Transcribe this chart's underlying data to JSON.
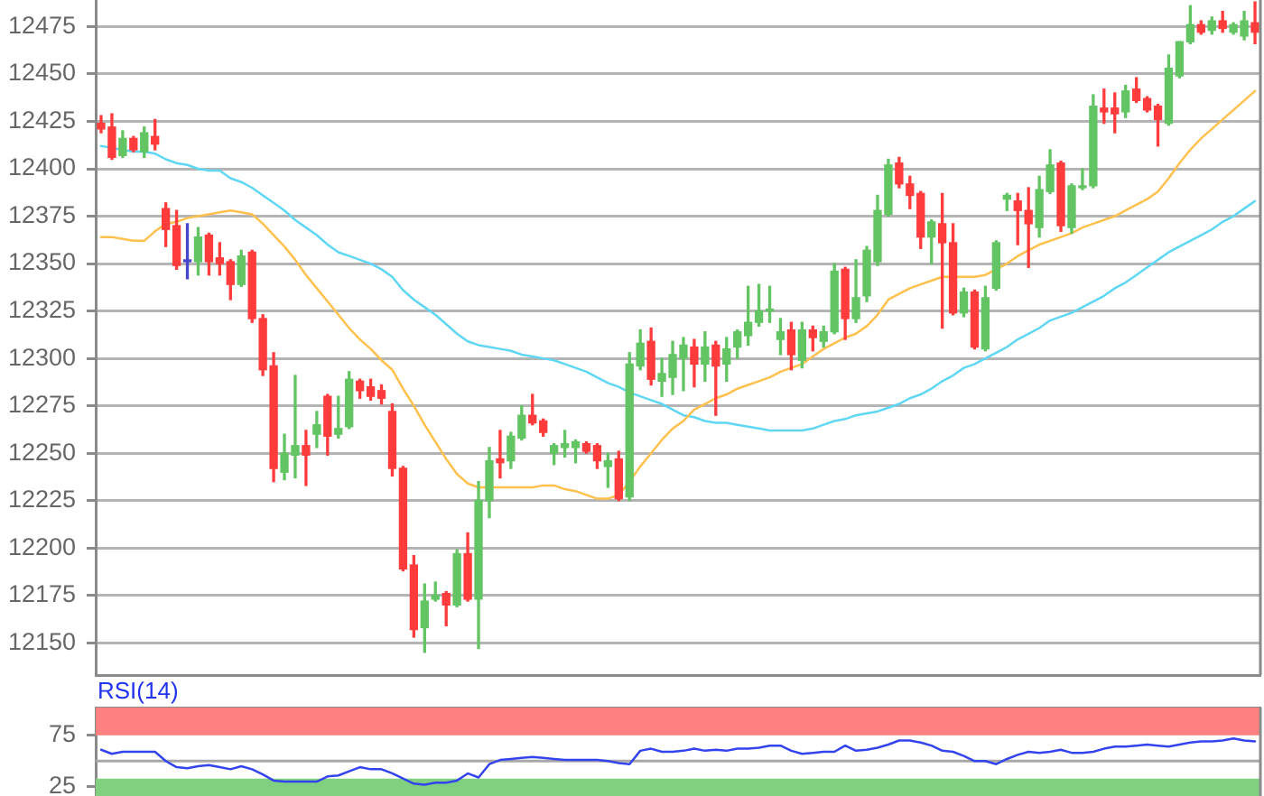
{
  "chart_data": [
    {
      "type": "candlestick",
      "categories": [
        null,
        null,
        null,
        null,
        null,
        null,
        null,
        null,
        null,
        null,
        null,
        null,
        null,
        null,
        null,
        null,
        null,
        null,
        null,
        null,
        null,
        null,
        null,
        null,
        null,
        null,
        null,
        null,
        null,
        null,
        null,
        null,
        null,
        null,
        null,
        null,
        null,
        null,
        null,
        null,
        null,
        null,
        null,
        null,
        null,
        null,
        null,
        null,
        null,
        null,
        null,
        null,
        null,
        null,
        null,
        null,
        null,
        null,
        null,
        null,
        null,
        null,
        null,
        null,
        null,
        null,
        null,
        null,
        null,
        null,
        null,
        null,
        null,
        null,
        null,
        null,
        null,
        null,
        null,
        null,
        null,
        null,
        null,
        null,
        null,
        null,
        null,
        null,
        null,
        null,
        null,
        null,
        null,
        null,
        null,
        null,
        null,
        null,
        null,
        null,
        null,
        null,
        null,
        null,
        null,
        null,
        null,
        null
      ],
      "ohlc": [
        [
          12424,
          12428,
          12419,
          12421
        ],
        [
          12422,
          12429,
          12405,
          12406
        ],
        [
          12407,
          12420,
          12406,
          12416
        ],
        [
          12416,
          12417,
          12409,
          12410
        ],
        [
          12409,
          12422,
          12406,
          12419
        ],
        [
          12417,
          12426,
          12410,
          12413
        ],
        [
          12379,
          12382,
          12359,
          12368
        ],
        [
          12370,
          12378,
          12347,
          12349
        ],
        [
          12351,
          12371,
          12342,
          12351
        ],
        [
          12351,
          12369,
          12344,
          12364
        ],
        [
          12365,
          12366,
          12344,
          12351
        ],
        [
          12353,
          12361,
          12344,
          12350
        ],
        [
          12351,
          12352,
          12331,
          12339
        ],
        [
          12339,
          12357,
          12338,
          12354
        ],
        [
          12356,
          12357,
          12319,
          12321
        ],
        [
          12321,
          12323,
          12291,
          12294
        ],
        [
          12296,
          12303,
          12235,
          12242
        ],
        [
          12240,
          12260,
          12236,
          12250
        ],
        [
          12249,
          12291,
          12237,
          12254
        ],
        [
          12254,
          12262,
          12233,
          12249
        ],
        [
          12260,
          12272,
          12253,
          12265
        ],
        [
          12280,
          12281,
          12249,
          12259
        ],
        [
          12260,
          12280,
          12258,
          12263
        ],
        [
          12264,
          12293,
          12263,
          12289
        ],
        [
          12288,
          12289,
          12279,
          12283
        ],
        [
          12285,
          12289,
          12278,
          12280
        ],
        [
          12283,
          12286,
          12276,
          12279
        ],
        [
          12272,
          12276,
          12238,
          12242
        ],
        [
          12242,
          12243,
          12188,
          12189
        ],
        [
          12191,
          12196,
          12153,
          12157
        ],
        [
          12158,
          12181,
          12145,
          12172
        ],
        [
          12173,
          12182,
          12172,
          12175
        ],
        [
          12176,
          12177,
          12159,
          12170
        ],
        [
          12170,
          12199,
          12169,
          12197
        ],
        [
          12197,
          12208,
          12172,
          12173
        ],
        [
          12173,
          12235,
          12147,
          12225
        ],
        [
          12225,
          12253,
          12216,
          12246
        ],
        [
          12247,
          12262,
          12237,
          12245
        ],
        [
          12246,
          12261,
          12242,
          12259
        ],
        [
          12258,
          12275,
          12257,
          12270
        ],
        [
          12270,
          12281,
          12265,
          12266
        ],
        [
          12267,
          12268,
          12259,
          12261
        ],
        [
          12250,
          12255,
          12244,
          12254
        ],
        [
          12253,
          12262,
          12248,
          12255
        ],
        [
          12253,
          12257,
          12245,
          12256
        ],
        [
          12255,
          12256,
          12250,
          12251
        ],
        [
          12254,
          12255,
          12242,
          12246
        ],
        [
          12243,
          12250,
          12232,
          12246
        ],
        [
          12247,
          12251,
          12225,
          12226
        ],
        [
          12227,
          12303,
          12225,
          12297
        ],
        [
          12296,
          12315,
          12294,
          12308
        ],
        [
          12309,
          12316,
          12286,
          12289
        ],
        [
          12288,
          12300,
          12280,
          12292
        ],
        [
          12290,
          12309,
          12281,
          12302
        ],
        [
          12300,
          12311,
          12283,
          12307
        ],
        [
          12306,
          12310,
          12285,
          12297
        ],
        [
          12297,
          12314,
          12288,
          12306
        ],
        [
          12307,
          12309,
          12270,
          12296
        ],
        [
          12297,
          12311,
          12288,
          12305
        ],
        [
          12306,
          12315,
          12300,
          12314
        ],
        [
          12312,
          12338,
          12307,
          12319
        ],
        [
          12319,
          12339,
          12317,
          12325
        ],
        [
          12325,
          12338,
          12319,
          12326
        ],
        [
          12310,
          12321,
          12302,
          12314
        ],
        [
          12315,
          12319,
          12294,
          12302
        ],
        [
          12299,
          12319,
          12295,
          12315
        ],
        [
          12315,
          12317,
          12304,
          12311
        ],
        [
          12309,
          12317,
          12306,
          12314
        ],
        [
          12314,
          12350,
          12313,
          12346
        ],
        [
          12347,
          12348,
          12310,
          12321
        ],
        [
          12321,
          12352,
          12319,
          12332
        ],
        [
          12333,
          12359,
          12330,
          12357
        ],
        [
          12351,
          12386,
          12349,
          12378
        ],
        [
          12376,
          12405,
          12375,
          12402
        ],
        [
          12403,
          12406,
          12390,
          12392
        ],
        [
          12392,
          12396,
          12379,
          12386
        ],
        [
          12387,
          12388,
          12358,
          12364
        ],
        [
          12364,
          12373,
          12350,
          12372
        ],
        [
          12371,
          12387,
          12316,
          12361
        ],
        [
          12361,
          12371,
          12323,
          12324
        ],
        [
          12324,
          12337,
          12322,
          12335
        ],
        [
          12335,
          12336,
          12305,
          12306
        ],
        [
          12305,
          12338,
          12304,
          12332
        ],
        [
          12337,
          12362,
          12336,
          12361
        ],
        [
          12384,
          12387,
          12378,
          12386
        ],
        [
          12383,
          12387,
          12360,
          12378
        ],
        [
          12378,
          12390,
          12348,
          12371
        ],
        [
          12369,
          12396,
          12364,
          12389
        ],
        [
          12388,
          12410,
          12387,
          12402
        ],
        [
          12403,
          12404,
          12367,
          12370
        ],
        [
          12369,
          12392,
          12366,
          12391
        ],
        [
          12390,
          12400,
          12389,
          12391
        ],
        [
          12391,
          12439,
          12390,
          12433
        ],
        [
          12432,
          12442,
          12424,
          12430
        ],
        [
          12432,
          12440,
          12419,
          12429
        ],
        [
          12430,
          12444,
          12427,
          12441
        ],
        [
          12442,
          12448,
          12435,
          12436
        ],
        [
          12437,
          12438,
          12430,
          12431
        ],
        [
          12433,
          12434,
          12412,
          12426
        ],
        [
          12424,
          12460,
          12423,
          12453
        ],
        [
          12449,
          12467,
          12448,
          12467
        ],
        [
          12467,
          12486,
          12466,
          12476
        ],
        [
          12476,
          12478,
          12471,
          12472
        ],
        [
          12473,
          12480,
          12471,
          12478
        ],
        [
          12478,
          12483,
          12472,
          12474
        ],
        [
          12472,
          12477,
          12471,
          12476
        ],
        [
          12470,
          12483,
          12468,
          12478
        ],
        [
          12477,
          12488,
          12466,
          12472
        ]
      ],
      "colors": [
        "#ff3b3b",
        "#ff3b3b",
        "#62c462",
        "#ff3b3b",
        "#62c462",
        "#ff3b3b",
        "#ff3b3b",
        "#ff3b3b",
        "#4646cc",
        "#62c462",
        "#ff3b3b",
        "#ff3b3b",
        "#ff3b3b",
        "#62c462",
        "#ff3b3b",
        "#ff3b3b",
        "#ff3b3b",
        "#62c462",
        "#62c462",
        "#ff3b3b",
        "#62c462",
        "#ff3b3b",
        "#62c462",
        "#62c462",
        "#ff3b3b",
        "#ff3b3b",
        "#ff3b3b",
        "#ff3b3b",
        "#ff3b3b",
        "#ff3b3b",
        "#62c462",
        "#62c462",
        "#ff3b3b",
        "#62c462",
        "#ff3b3b",
        "#62c462",
        "#62c462",
        "#ff3b3b",
        "#62c462",
        "#62c462",
        "#ff3b3b",
        "#ff3b3b",
        "#62c462",
        "#62c462",
        "#62c462",
        "#ff3b3b",
        "#ff3b3b",
        "#62c462",
        "#ff3b3b",
        "#62c462",
        "#62c462",
        "#ff3b3b",
        "#62c462",
        "#62c462",
        "#62c462",
        "#ff3b3b",
        "#62c462",
        "#ff3b3b",
        "#62c462",
        "#62c462",
        "#62c462",
        "#62c462",
        "#62c462",
        "#62c462",
        "#ff3b3b",
        "#62c462",
        "#ff3b3b",
        "#62c462",
        "#62c462",
        "#ff3b3b",
        "#62c462",
        "#62c462",
        "#62c462",
        "#62c462",
        "#ff3b3b",
        "#ff3b3b",
        "#ff3b3b",
        "#62c462",
        "#ff3b3b",
        "#ff3b3b",
        "#62c462",
        "#ff3b3b",
        "#62c462",
        "#62c462",
        "#62c462",
        "#ff3b3b",
        "#ff3b3b",
        "#62c462",
        "#62c462",
        "#ff3b3b",
        "#62c462",
        "#62c462",
        "#62c462",
        "#ff3b3b",
        "#ff3b3b",
        "#62c462",
        "#ff3b3b",
        "#ff3b3b",
        "#ff3b3b",
        "#62c462",
        "#62c462",
        "#62c462",
        "#ff3b3b",
        "#62c462",
        "#ff3b3b",
        "#62c462",
        "#62c462",
        "#ff3b3b"
      ],
      "series": [
        {
          "type": "line",
          "color": "#ffc04d",
          "values": [
            12364,
            12364,
            12363,
            12362,
            12362,
            12367,
            12371,
            12372,
            12374,
            12375,
            12376,
            12377,
            12378,
            12377,
            12376,
            12371,
            12365,
            12359,
            12352,
            12344,
            12337,
            12330,
            12323,
            12316,
            12310,
            12305,
            12299,
            12294,
            12284,
            12275,
            12265,
            12256,
            12247,
            12239,
            12234,
            12232,
            12232,
            12232,
            12232,
            12232,
            12232,
            12233,
            12233,
            12231,
            12230,
            12228,
            12226,
            12226,
            12228,
            12235,
            12243,
            12250,
            12257,
            12263,
            12267,
            12273,
            12276,
            12279,
            12281,
            12284,
            12286,
            12288,
            12290,
            12293,
            12295,
            12297,
            12301,
            12305,
            12308,
            12311,
            12313,
            12317,
            12323,
            12331,
            12334,
            12337,
            12339,
            12341,
            12343,
            12343,
            12343,
            12343,
            12344,
            12347,
            12350,
            12354,
            12357,
            12360,
            12362,
            12364,
            12366,
            12369,
            12371,
            12373,
            12375,
            12378,
            12381,
            12384,
            12388,
            12395,
            12403,
            12410,
            12416,
            12421,
            12426,
            12431,
            12436,
            12441
          ]
        },
        {
          "type": "line",
          "color": "#5fd7f4",
          "values": [
            12412,
            12411,
            12410,
            12409,
            12409,
            12408,
            12405,
            12403,
            12402,
            12400,
            12399,
            12399,
            12395,
            12393,
            12390,
            12386,
            12382,
            12378,
            12373,
            12369,
            12365,
            12360,
            12356,
            12354,
            12352,
            12350,
            12347,
            12343,
            12336,
            12331,
            12327,
            12323,
            12318,
            12313,
            12309,
            12307,
            12306,
            12305,
            12304,
            12302,
            12301,
            12300,
            12299,
            12297,
            12295,
            12293,
            12290,
            12287,
            12285,
            12282,
            12280,
            12278,
            12276,
            12273,
            12270,
            12269,
            12267,
            12266,
            12266,
            12265,
            12264,
            12263,
            12262,
            12262,
            12262,
            12262,
            12263,
            12265,
            12267,
            12268,
            12270,
            12271,
            12272,
            12274,
            12276,
            12279,
            12281,
            12284,
            12288,
            12291,
            12295,
            12297,
            12300,
            12303,
            12306,
            12310,
            12313,
            12316,
            12320,
            12322,
            12324,
            12327,
            12330,
            12333,
            12337,
            12340,
            12344,
            12348,
            12352,
            12356,
            12359,
            12362,
            12365,
            12368,
            12372,
            12375,
            12379,
            12383
          ]
        }
      ],
      "ylim": [
        12133,
        12489
      ],
      "yticks": [
        12150,
        12175,
        12200,
        12225,
        12250,
        12275,
        12300,
        12325,
        12350,
        12375,
        12400,
        12425,
        12450,
        12475
      ],
      "grid": "y",
      "tick_labels": "y"
    },
    {
      "type": "line",
      "title": "RSI(14)",
      "categories": [
        null,
        null,
        null,
        null,
        null,
        null,
        null,
        null,
        null,
        null,
        null,
        null,
        null,
        null,
        null,
        null,
        null,
        null,
        null,
        null,
        null,
        null,
        null,
        null,
        null,
        null,
        null,
        null,
        null,
        null,
        null,
        null,
        null,
        null,
        null,
        null,
        null,
        null,
        null,
        null,
        null,
        null,
        null,
        null,
        null,
        null,
        null,
        null,
        null,
        null,
        null,
        null,
        null,
        null,
        null,
        null,
        null,
        null,
        null,
        null,
        null,
        null,
        null,
        null,
        null,
        null,
        null,
        null,
        null,
        null,
        null,
        null,
        null,
        null,
        null,
        null,
        null,
        null,
        null,
        null,
        null,
        null,
        null,
        null,
        null,
        null,
        null,
        null,
        null,
        null,
        null,
        null,
        null,
        null,
        null,
        null,
        null,
        null,
        null,
        null,
        null,
        null,
        null,
        null,
        null,
        null,
        null,
        null
      ],
      "values": [
        61,
        57,
        59,
        59,
        59,
        59,
        50,
        44,
        43,
        45,
        46,
        44,
        42,
        45,
        42,
        37,
        31,
        30,
        30,
        30,
        30,
        35,
        36,
        40,
        44,
        42,
        42,
        38,
        33,
        28,
        27,
        29,
        29,
        31,
        38,
        34,
        47,
        51,
        52,
        53,
        54,
        53,
        52,
        51,
        51,
        51,
        51,
        50,
        48,
        47,
        60,
        62,
        59,
        59,
        60,
        62,
        60,
        61,
        60,
        62,
        62,
        63,
        65,
        65,
        60,
        57,
        58,
        59,
        59,
        65,
        60,
        61,
        63,
        66,
        70,
        70,
        68,
        65,
        60,
        59,
        55,
        50,
        50,
        47,
        52,
        56,
        59,
        58,
        59,
        61,
        58,
        58,
        59,
        62,
        64,
        64,
        65,
        66,
        65,
        64,
        66,
        68,
        69,
        69,
        70,
        72,
        70,
        69
      ],
      "color": "#3344ee",
      "ylim": [
        16,
        102
      ],
      "yticks": [
        75,
        25
      ],
      "bands": [
        {
          "axis": "y",
          "from": 75,
          "to": 102,
          "color": "#ff8080"
        },
        {
          "axis": "y",
          "from": 16,
          "to": 33,
          "color": "#80d080"
        }
      ],
      "ref_lines": [
        {
          "axis": "y",
          "value": 50,
          "color": "#a8a8a8"
        }
      ],
      "tick_labels": "y"
    }
  ]
}
